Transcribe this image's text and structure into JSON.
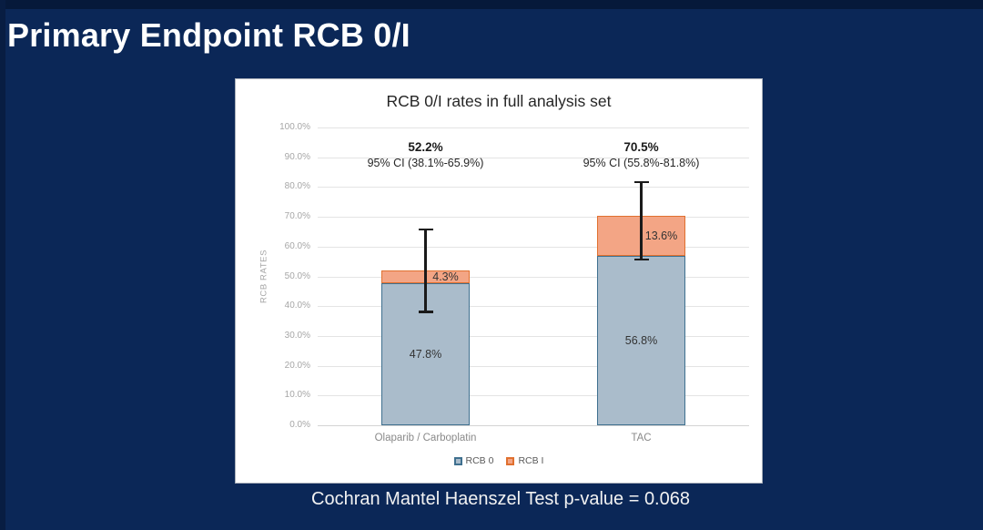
{
  "slide": {
    "title": "Primary Endpoint RCB 0/I",
    "caption": "Cochran Mantel Haenszel Test p-value = 0.068",
    "background_color": "#0b2757",
    "panel_color": "#ffffff"
  },
  "chart_data": {
    "type": "bar",
    "stacked": true,
    "title": "RCB 0/I rates in full analysis set",
    "xlabel": "",
    "ylabel": "RCB RATES",
    "ylim": [
      0,
      100
    ],
    "ytick_step": 10,
    "ytick_format": "0.0%",
    "grid": true,
    "legend_position": "bottom",
    "categories": [
      "Olaparib / Carboplatin",
      "TAC"
    ],
    "series": [
      {
        "name": "RCB 0",
        "values": [
          47.8,
          56.8
        ],
        "fill": "#aabccb",
        "border": "#3f708f"
      },
      {
        "name": "RCB I",
        "values": [
          4.3,
          13.6
        ],
        "fill": "#f3a585",
        "border": "#e0702f"
      }
    ],
    "totals": [
      {
        "label": "52.2%",
        "ci_label": "95% CI (38.1%-65.9%)",
        "ci_low": 38.1,
        "ci_high": 65.9
      },
      {
        "label": "70.5%",
        "ci_label": "95% CI (55.8%-81.8%)",
        "ci_low": 55.8,
        "ci_high": 81.8
      }
    ],
    "error_bar_color": "#1a1a1a"
  }
}
